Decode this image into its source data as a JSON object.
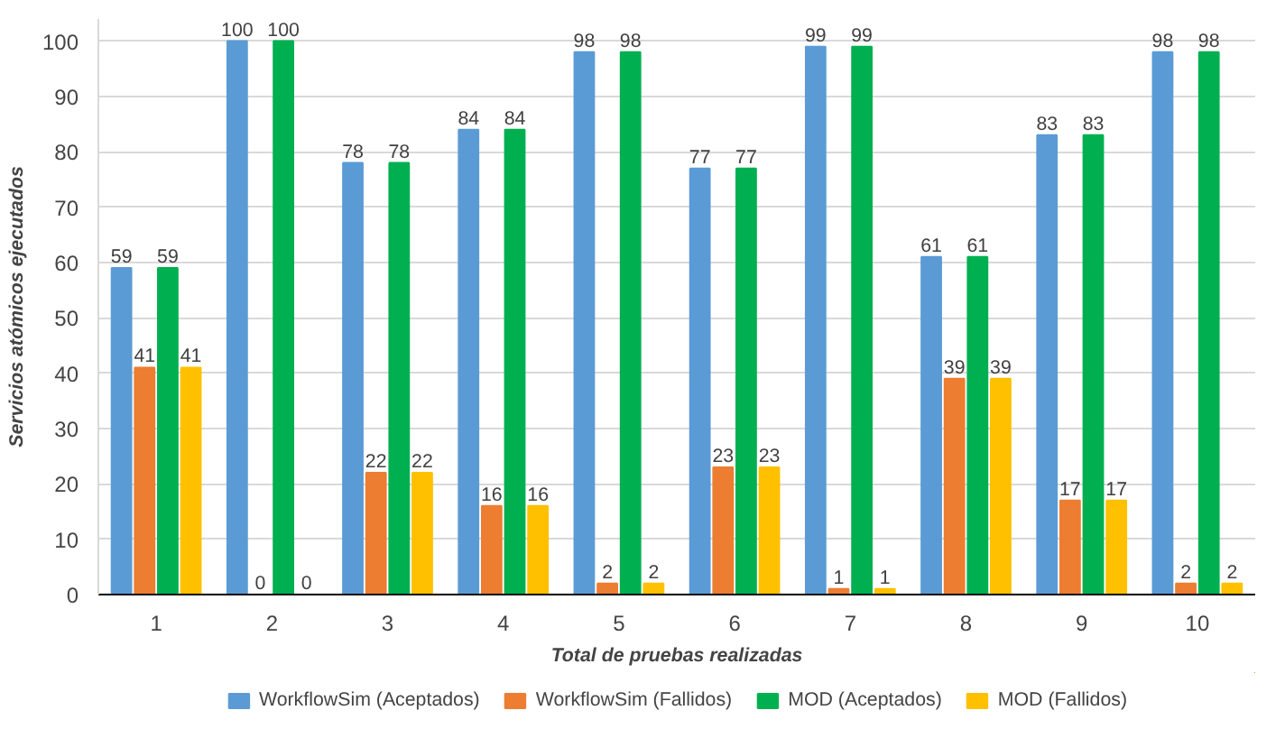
{
  "chart_data": {
    "type": "bar",
    "xlabel": "Total de pruebas realizadas",
    "ylabel": "Servicios atómicos ejecutados",
    "categories": [
      "1",
      "2",
      "3",
      "4",
      "5",
      "6",
      "7",
      "8",
      "9",
      "10"
    ],
    "series": [
      {
        "name": "WorkflowSim (Aceptados)",
        "color": "#5b9bd5",
        "values": [
          59,
          100,
          78,
          84,
          98,
          77,
          99,
          61,
          83,
          98
        ]
      },
      {
        "name": "WorkflowSim (Fallidos)",
        "color": "#ed7d31",
        "values": [
          41,
          0,
          22,
          16,
          2,
          23,
          1,
          39,
          17,
          2
        ]
      },
      {
        "name": "MOD (Aceptados)",
        "color": "#00b050",
        "values": [
          59,
          100,
          78,
          84,
          98,
          77,
          99,
          61,
          83,
          98
        ]
      },
      {
        "name": "MOD (Fallidos)",
        "color": "#ffc000",
        "values": [
          41,
          0,
          22,
          16,
          2,
          23,
          1,
          39,
          17,
          2
        ]
      }
    ],
    "ylim": [
      0,
      104
    ],
    "yticks": [
      0,
      10,
      20,
      30,
      40,
      50,
      60,
      70,
      80,
      90,
      100
    ],
    "grid": "y",
    "legend": "bottom",
    "data_labels": true
  }
}
